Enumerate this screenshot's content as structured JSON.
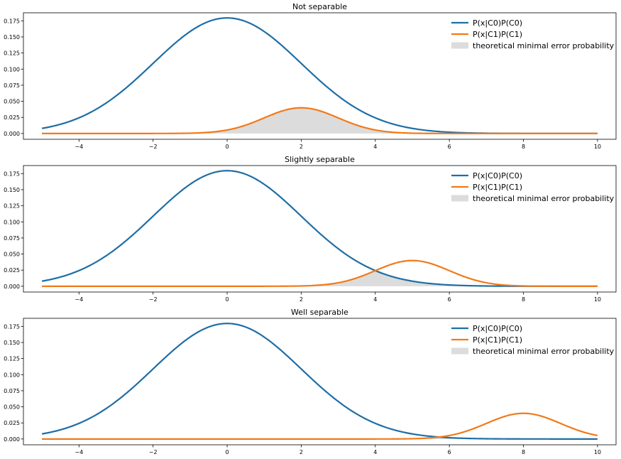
{
  "chart_data": [
    {
      "type": "line",
      "title": "Not separable",
      "xlim": [
        -5.5,
        10.5
      ],
      "ylim": [
        -0.009,
        0.1875
      ],
      "xticks": [
        -4,
        -2,
        0,
        2,
        4,
        6,
        8,
        10
      ],
      "xtick_labels": [
        "−4",
        "−2",
        "0",
        "2",
        "4",
        "6",
        "8",
        "10"
      ],
      "yticks": [
        0.0,
        0.025,
        0.05,
        0.075,
        0.1,
        0.125,
        0.15,
        0.175
      ],
      "ytick_labels": [
        "0.000",
        "0.025",
        "0.050",
        "0.075",
        "0.100",
        "0.125",
        "0.150",
        "0.175"
      ],
      "x_range": [
        -5,
        10
      ],
      "series": [
        {
          "name": "P(x|C0)P(C0)",
          "color": "#1f6ea5",
          "distribution": "normal",
          "mean": 0,
          "sd": 2,
          "peak": 0.1795
        },
        {
          "name": "P(x|C1)P(C1)",
          "color": "#f27a1a",
          "distribution": "normal",
          "mean": 2,
          "sd": 1,
          "peak": 0.0399
        }
      ],
      "fill": {
        "name": "theoretical minimal error probability",
        "color": "#dcdcdc",
        "mode": "min-of-series"
      },
      "legend": {
        "position": "upper-right"
      }
    },
    {
      "type": "line",
      "title": "Slightly separable",
      "xlim": [
        -5.5,
        10.5
      ],
      "ylim": [
        -0.009,
        0.1875
      ],
      "xticks": [
        -4,
        -2,
        0,
        2,
        4,
        6,
        8,
        10
      ],
      "xtick_labels": [
        "−4",
        "−2",
        "0",
        "2",
        "4",
        "6",
        "8",
        "10"
      ],
      "yticks": [
        0.0,
        0.025,
        0.05,
        0.075,
        0.1,
        0.125,
        0.15,
        0.175
      ],
      "ytick_labels": [
        "0.000",
        "0.025",
        "0.050",
        "0.075",
        "0.100",
        "0.125",
        "0.150",
        "0.175"
      ],
      "x_range": [
        -5,
        10
      ],
      "series": [
        {
          "name": "P(x|C0)P(C0)",
          "color": "#1f6ea5",
          "distribution": "normal",
          "mean": 0,
          "sd": 2,
          "peak": 0.1795
        },
        {
          "name": "P(x|C1)P(C1)",
          "color": "#f27a1a",
          "distribution": "normal",
          "mean": 5,
          "sd": 1,
          "peak": 0.0399
        }
      ],
      "fill": {
        "name": "theoretical minimal error probability",
        "color": "#dcdcdc",
        "mode": "min-of-series"
      },
      "legend": {
        "position": "upper-right"
      }
    },
    {
      "type": "line",
      "title": "Well separable",
      "xlim": [
        -5.5,
        10.5
      ],
      "ylim": [
        -0.009,
        0.1875
      ],
      "xticks": [
        -4,
        -2,
        0,
        2,
        4,
        6,
        8,
        10
      ],
      "xtick_labels": [
        "−4",
        "−2",
        "0",
        "2",
        "4",
        "6",
        "8",
        "10"
      ],
      "yticks": [
        0.0,
        0.025,
        0.05,
        0.075,
        0.1,
        0.125,
        0.15,
        0.175
      ],
      "ytick_labels": [
        "0.000",
        "0.025",
        "0.050",
        "0.075",
        "0.100",
        "0.125",
        "0.150",
        "0.175"
      ],
      "x_range": [
        -5,
        10
      ],
      "series": [
        {
          "name": "P(x|C0)P(C0)",
          "color": "#1f6ea5",
          "distribution": "normal",
          "mean": 0,
          "sd": 2,
          "peak": 0.1795
        },
        {
          "name": "P(x|C1)P(C1)",
          "color": "#f27a1a",
          "distribution": "normal",
          "mean": 8,
          "sd": 1,
          "peak": 0.0399
        }
      ],
      "fill": {
        "name": "theoretical minimal error probability",
        "color": "#dcdcdc",
        "mode": "min-of-series"
      },
      "legend": {
        "position": "upper-right"
      }
    }
  ]
}
